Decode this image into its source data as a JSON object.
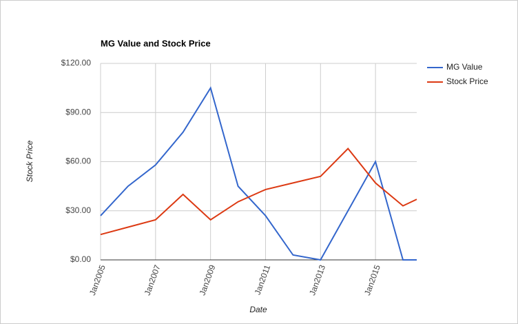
{
  "chart_data": {
    "type": "line",
    "title": "MG Value and Stock Price",
    "x_label": "Date",
    "y_label": "Stock Price",
    "x": [
      "2005-01",
      "2006-01",
      "2007-01",
      "2008-01",
      "2009-01",
      "2010-01",
      "2011-01",
      "2012-01",
      "2013-01",
      "2014-01",
      "2015-01",
      "2016-01",
      "2016-07"
    ],
    "series": [
      {
        "name": "MG Value",
        "color": "#3366cc",
        "values": [
          27,
          45,
          58,
          78,
          105,
          45,
          27,
          3,
          0,
          30,
          60,
          0,
          0
        ]
      },
      {
        "name": "Stock Price",
        "color": "#dc3912",
        "values": [
          15.5,
          20,
          24.5,
          40,
          24.5,
          35.5,
          43,
          47,
          51,
          68,
          47,
          33,
          37
        ]
      }
    ],
    "xlim": [
      "2005-01",
      "2016-07"
    ],
    "xticks": [
      {
        "value": "2005-01",
        "label": "Jan2005"
      },
      {
        "value": "2007-01",
        "label": "Jan2007"
      },
      {
        "value": "2009-01",
        "label": "Jan2009"
      },
      {
        "value": "2011-01",
        "label": "Jan2011"
      },
      {
        "value": "2013-01",
        "label": "Jan2013"
      },
      {
        "value": "2015-01",
        "label": "Jan2015"
      }
    ],
    "ylim": [
      0,
      120
    ],
    "yticks": [
      {
        "value": 0,
        "label": "$0.00"
      },
      {
        "value": 30,
        "label": "$30.00"
      },
      {
        "value": 60,
        "label": "$60.00"
      },
      {
        "value": 90,
        "label": "$90.00"
      },
      {
        "value": 120,
        "label": "$120.00"
      }
    ],
    "grid": true,
    "legend": "right"
  }
}
